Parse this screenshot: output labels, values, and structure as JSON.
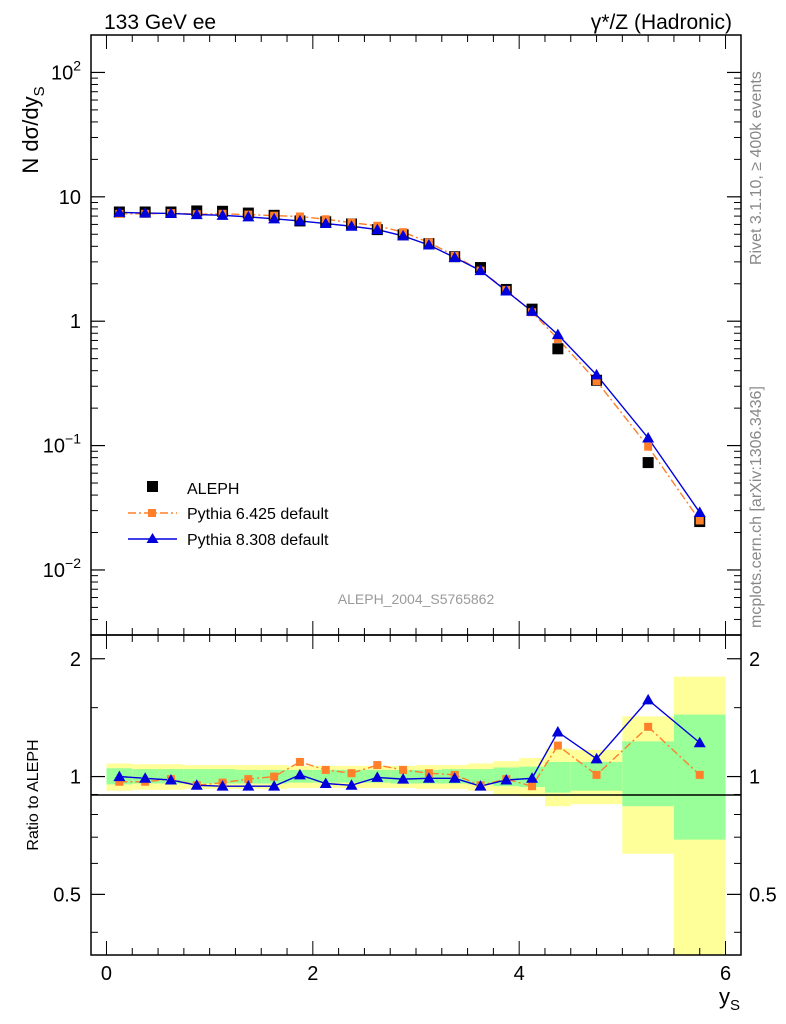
{
  "header": {
    "left": "133 GeV ee",
    "right": "γ*/Z (Hadronic)"
  },
  "side_labels": {
    "rivet": "Rivet 3.1.10, ≥ 400k events",
    "mcplots": "mcplots.cern.ch [arXiv:1306.3436]"
  },
  "analysis_id": "ALEPH_2004_S5765862",
  "colors": {
    "data": "#000000",
    "pythia6": "#ff7f2a",
    "pythia8": "#0000dd",
    "band_inner": "#99ff99",
    "band_outer": "#ffff99"
  },
  "chart_data": [
    {
      "type": "scatter",
      "ylabel": "N dσ/dy_S",
      "yscale": "log",
      "xlim": [
        -0.15,
        6.15
      ],
      "ylim": [
        0.003,
        200
      ],
      "yticks": [
        "10^-2",
        "10^-1",
        "1",
        "10",
        "10^2"
      ],
      "legend_position": "lower-left",
      "x": [
        0.125,
        0.375,
        0.625,
        0.875,
        1.125,
        1.375,
        1.625,
        1.875,
        2.125,
        2.375,
        2.625,
        2.875,
        3.125,
        3.375,
        3.625,
        3.875,
        4.125,
        4.375,
        4.75,
        5.25,
        5.75
      ],
      "series": [
        {
          "name": "ALEPH",
          "marker": "square",
          "values": [
            7.55,
            7.55,
            7.55,
            7.7,
            7.65,
            7.4,
            7.1,
            6.4,
            6.3,
            6.05,
            5.45,
            4.95,
            4.2,
            3.3,
            2.7,
            1.8,
            1.25,
            0.6,
            0.335,
            0.073,
            0.0245
          ]
        },
        {
          "name": "Pythia 6.425 default",
          "marker": "square-small",
          "line": "dash-dot",
          "values": [
            7.3,
            7.3,
            7.4,
            7.25,
            7.3,
            7.2,
            7.05,
            6.95,
            6.6,
            6.2,
            5.85,
            5.2,
            4.3,
            3.35,
            2.55,
            1.78,
            1.18,
            0.72,
            0.33,
            0.098,
            0.025
          ]
        },
        {
          "name": "Pythia 8.308 default",
          "marker": "triangle",
          "line": "solid",
          "values": [
            7.5,
            7.4,
            7.35,
            7.2,
            7.1,
            6.9,
            6.65,
            6.4,
            6.1,
            5.8,
            5.45,
            4.85,
            4.1,
            3.25,
            2.55,
            1.75,
            1.2,
            0.78,
            0.37,
            0.115,
            0.029
          ]
        }
      ]
    },
    {
      "type": "line",
      "ylabel": "Ratio to ALEPH",
      "xlabel": "y_S",
      "xlim": [
        -0.15,
        6.15
      ],
      "ylim": [
        0.35,
        2.3
      ],
      "xticks": [
        "0",
        "2",
        "4",
        "6"
      ],
      "yticks": [
        "0.5",
        "1",
        "2"
      ],
      "bins": [
        [
          0,
          0.25
        ],
        [
          0.25,
          0.5
        ],
        [
          0.5,
          0.75
        ],
        [
          0.75,
          1.0
        ],
        [
          1.0,
          1.25
        ],
        [
          1.25,
          1.5
        ],
        [
          1.5,
          1.75
        ],
        [
          1.75,
          2.0
        ],
        [
          2.0,
          2.25
        ],
        [
          2.25,
          2.5
        ],
        [
          2.5,
          2.75
        ],
        [
          2.75,
          3.0
        ],
        [
          3.0,
          3.25
        ],
        [
          3.25,
          3.5
        ],
        [
          3.5,
          3.75
        ],
        [
          3.75,
          4.0
        ],
        [
          4.0,
          4.25
        ],
        [
          4.25,
          4.5
        ],
        [
          4.5,
          5.0
        ],
        [
          5.0,
          5.5
        ],
        [
          5.5,
          6.0
        ]
      ],
      "band_outer": [
        [
          0.92,
          1.08
        ],
        [
          0.925,
          1.075
        ],
        [
          0.925,
          1.075
        ],
        [
          0.93,
          1.07
        ],
        [
          0.93,
          1.07
        ],
        [
          0.93,
          1.07
        ],
        [
          0.93,
          1.07
        ],
        [
          0.935,
          1.065
        ],
        [
          0.935,
          1.065
        ],
        [
          0.935,
          1.065
        ],
        [
          0.935,
          1.065
        ],
        [
          0.935,
          1.065
        ],
        [
          0.93,
          1.07
        ],
        [
          0.93,
          1.07
        ],
        [
          0.92,
          1.08
        ],
        [
          0.9,
          1.095
        ],
        [
          0.89,
          1.115
        ],
        [
          0.84,
          1.18
        ],
        [
          0.85,
          1.17
        ],
        [
          0.635,
          1.425
        ],
        [
          0.35,
          1.8
        ]
      ],
      "band_inner": [
        [
          0.955,
          1.05
        ],
        [
          0.96,
          1.045
        ],
        [
          0.96,
          1.045
        ],
        [
          0.96,
          1.045
        ],
        [
          0.96,
          1.045
        ],
        [
          0.96,
          1.04
        ],
        [
          0.96,
          1.04
        ],
        [
          0.965,
          1.04
        ],
        [
          0.965,
          1.04
        ],
        [
          0.965,
          1.04
        ],
        [
          0.965,
          1.04
        ],
        [
          0.96,
          1.04
        ],
        [
          0.96,
          1.04
        ],
        [
          0.96,
          1.045
        ],
        [
          0.955,
          1.045
        ],
        [
          0.945,
          1.055
        ],
        [
          0.94,
          1.06
        ],
        [
          0.91,
          1.09
        ],
        [
          0.92,
          1.09
        ],
        [
          0.84,
          1.23
        ],
        [
          0.69,
          1.44
        ]
      ],
      "series": [
        {
          "name": "Pythia 6.425 default",
          "values": [
            0.97,
            0.97,
            0.985,
            0.95,
            0.965,
            0.985,
            1.0,
            1.09,
            1.04,
            1.02,
            1.07,
            1.04,
            1.02,
            1.01,
            0.95,
            0.985,
            0.945,
            1.2,
            1.01,
            1.34,
            1.01
          ]
        },
        {
          "name": "Pythia 8.308 default",
          "values": [
            1.0,
            0.99,
            0.98,
            0.95,
            0.945,
            0.945,
            0.945,
            1.01,
            0.96,
            0.95,
            0.995,
            0.985,
            0.99,
            0.99,
            0.945,
            0.98,
            0.99,
            1.3,
            1.11,
            1.57,
            1.22
          ]
        }
      ]
    }
  ]
}
